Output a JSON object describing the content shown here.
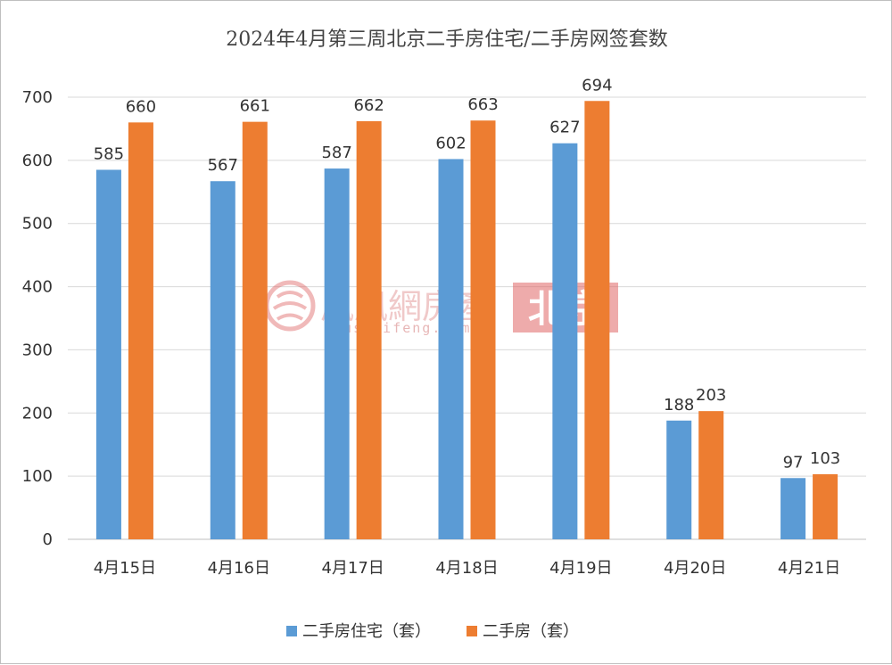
{
  "chart_data": {
    "type": "bar",
    "title": "2024年4月第三周北京二手房住宅/二手房网签套数",
    "categories": [
      "4月15日",
      "4月16日",
      "4月17日",
      "4月18日",
      "4月19日",
      "4月20日",
      "4月21日"
    ],
    "series": [
      {
        "name": "二手房住宅（套）",
        "color": "#5b9bd5",
        "values": [
          585,
          567,
          587,
          602,
          627,
          188,
          97
        ]
      },
      {
        "name": "二手房（套）",
        "color": "#ed7d31",
        "values": [
          660,
          661,
          662,
          663,
          694,
          203,
          103
        ]
      }
    ],
    "ylim": [
      0,
      700
    ],
    "yticks": [
      0,
      100,
      200,
      300,
      400,
      500,
      600,
      700
    ],
    "grid": true,
    "legend": "bottom"
  },
  "watermark": {
    "brand": "鳳凰網房產",
    "url": "house.ifeng.com",
    "city": "北京",
    "logo_icon": "ifeng-phoenix-logo-icon",
    "color": "#e06666"
  }
}
